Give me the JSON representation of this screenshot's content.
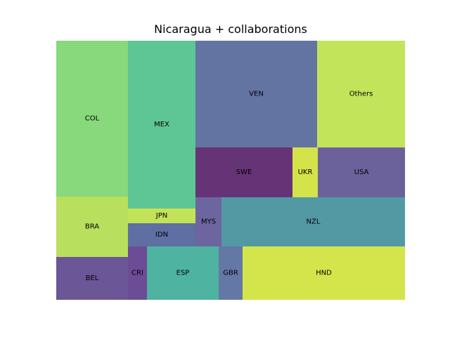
{
  "chart_data": {
    "type": "treemap",
    "title": "Nicaragua + collaborations",
    "tiles": [
      {
        "label": "COL",
        "color": "#88d87c"
      },
      {
        "label": "BRA",
        "color": "#b8df5e"
      },
      {
        "label": "BEL",
        "color": "#6b5698"
      },
      {
        "label": "MEX",
        "color": "#5ec694"
      },
      {
        "label": "JPN",
        "color": "#c2e357"
      },
      {
        "label": "IDN",
        "color": "#5f6ea3"
      },
      {
        "label": "CRI",
        "color": "#6c4c95"
      },
      {
        "label": "ESP",
        "color": "#4fb3a2"
      },
      {
        "label": "VEN",
        "color": "#6374a2"
      },
      {
        "label": "SWE",
        "color": "#663377"
      },
      {
        "label": "UKR",
        "color": "#d4e349"
      },
      {
        "label": "USA",
        "color": "#6b629c"
      },
      {
        "label": "MYS",
        "color": "#6d65a0"
      },
      {
        "label": "NZL",
        "color": "#5299a4"
      },
      {
        "label": "GBR",
        "color": "#6478a6"
      },
      {
        "label": "HND",
        "color": "#d4e54c"
      },
      {
        "label": "Others",
        "color": "#c2e45b"
      }
    ]
  }
}
